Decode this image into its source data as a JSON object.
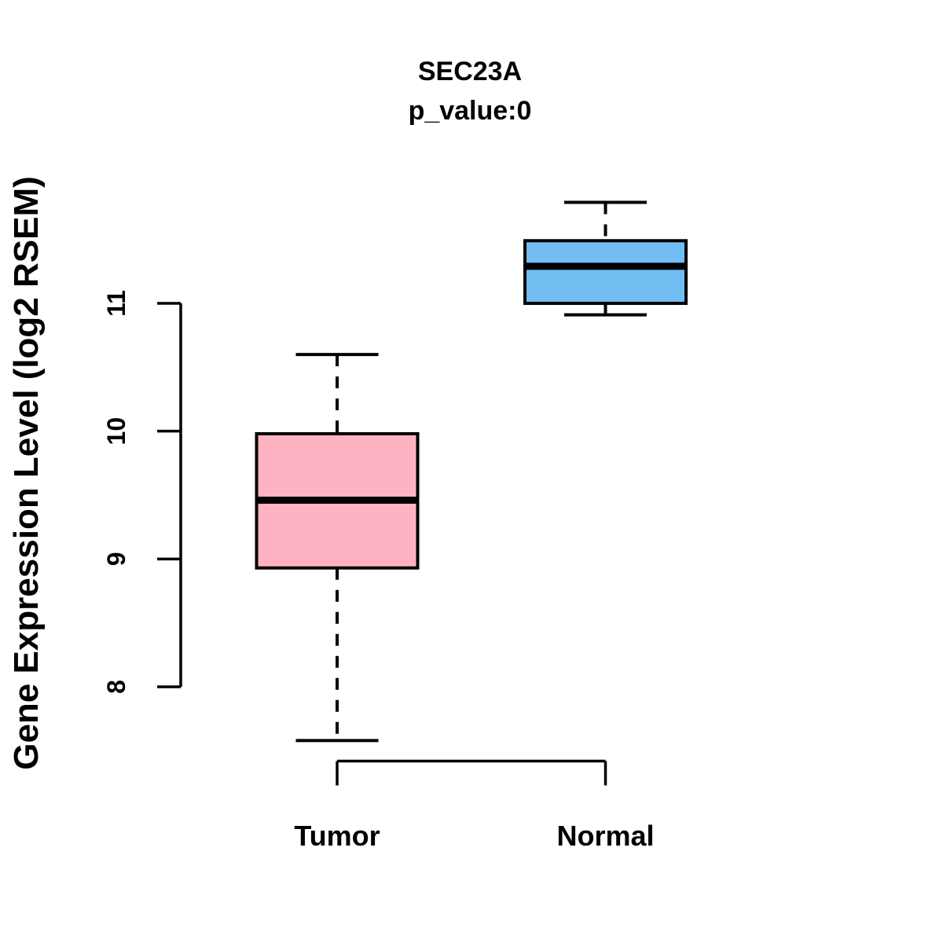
{
  "chart_data": {
    "type": "boxplot",
    "title": "SEC23A",
    "subtitle": "p_value:0",
    "p_value": 0,
    "ylabel": "Gene Expression Level (log2 RSEM)",
    "xlabel": "",
    "categories": [
      "Tumor",
      "Normal"
    ],
    "y_ticks": [
      8,
      9,
      10,
      11
    ],
    "ylim": [
      7.4,
      12.0
    ],
    "grid": false,
    "legend": "none",
    "series": [
      {
        "name": "Tumor",
        "fill_color": "#FFB3C2",
        "whisker_low": 7.58,
        "q1": 8.93,
        "median": 9.46,
        "q3": 9.98,
        "whisker_high": 10.6,
        "outliers": []
      },
      {
        "name": "Normal",
        "fill_color": "#72BDF2",
        "whisker_low": 10.91,
        "q1": 11.0,
        "median": 11.29,
        "q3": 11.49,
        "whisker_high": 11.79,
        "outliers": []
      }
    ],
    "line_color": "#000000"
  }
}
